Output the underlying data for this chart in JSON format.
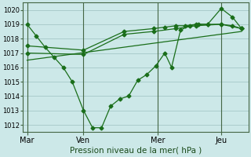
{
  "bg_color": "#cce8e8",
  "grid_color": "#aacccc",
  "line_color": "#1a6e1a",
  "xlabel": "Pression niveau de la mer( hPa )",
  "ylim": [
    1011.5,
    1020.5
  ],
  "yticks": [
    1012,
    1013,
    1014,
    1015,
    1016,
    1017,
    1018,
    1019,
    1020
  ],
  "xlim": [
    0,
    10.0
  ],
  "xtick_labels": [
    "Mar",
    "Ven",
    "Mer",
    "Jeu"
  ],
  "xtick_positions": [
    0.2,
    2.7,
    6.0,
    8.8
  ],
  "vline_positions": [
    0.2,
    2.7,
    6.0,
    8.8
  ],
  "series1_x": [
    0.2,
    0.6,
    1.0,
    1.4,
    1.8,
    2.2,
    2.7,
    3.1,
    3.5,
    3.9,
    4.3,
    4.7,
    5.1,
    5.5,
    5.9,
    6.3,
    6.6,
    7.0,
    7.4,
    7.8,
    8.2,
    8.8,
    9.3,
    9.7
  ],
  "series1_y": [
    1019.0,
    1018.2,
    1017.4,
    1016.7,
    1016.0,
    1015.0,
    1013.0,
    1011.8,
    1011.8,
    1013.3,
    1013.8,
    1014.0,
    1015.1,
    1015.5,
    1016.1,
    1017.0,
    1016.0,
    1018.6,
    1018.9,
    1019.0,
    1019.0,
    1020.1,
    1019.5,
    1018.7
  ],
  "series2_x": [
    0.2,
    2.7,
    4.5,
    5.8,
    6.3,
    6.8,
    7.2,
    7.7,
    8.2,
    8.8,
    9.3,
    9.7
  ],
  "series2_y": [
    1017.5,
    1017.2,
    1018.5,
    1018.7,
    1018.8,
    1018.9,
    1018.9,
    1019.0,
    1019.0,
    1019.0,
    1018.9,
    1018.7
  ],
  "series3_x": [
    0.2,
    2.7,
    4.5,
    5.8,
    6.8,
    7.7,
    8.8,
    9.7
  ],
  "series3_y": [
    1017.0,
    1016.9,
    1018.3,
    1018.5,
    1018.7,
    1018.9,
    1019.0,
    1018.7
  ],
  "series4_x": [
    0.2,
    9.7
  ],
  "series4_y": [
    1016.5,
    1018.5
  ]
}
